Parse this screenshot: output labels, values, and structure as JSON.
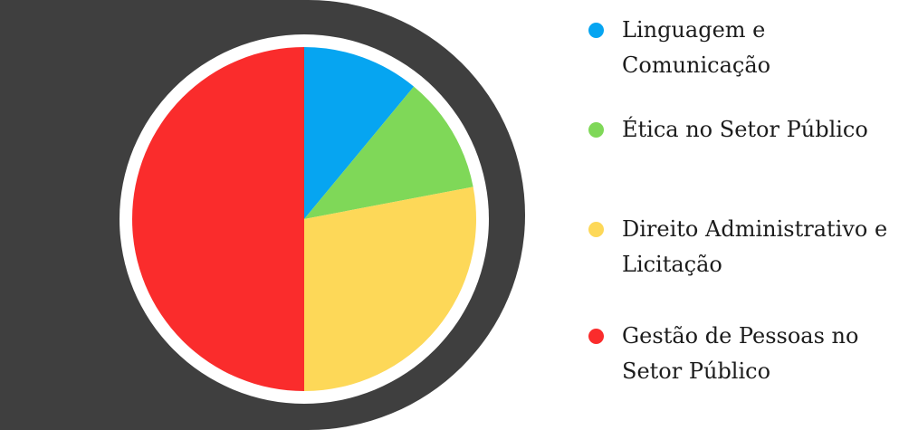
{
  "chart_data": {
    "type": "pie",
    "title": "",
    "categories": [
      "Linguagem e Comunicação",
      "Ética no Setor Público",
      "Direito Administrativo e Licitação",
      "Gestão de Pessoas no Setor Público"
    ],
    "values": [
      11,
      11,
      28,
      50
    ],
    "colors": [
      "#06a5f1",
      "#7fd858",
      "#fdd858",
      "#fa2c2c"
    ],
    "start_angle_deg": 0,
    "direction": "clockwise",
    "legend_position": "right"
  },
  "legend": {
    "items": [
      {
        "label": "Linguagem e Comunicação",
        "color": "#06a5f1"
      },
      {
        "label": "Ética no Setor Público",
        "color": "#7fd858"
      },
      {
        "label": "Direito Administrativo e Licitação",
        "color": "#fdd858"
      },
      {
        "label": "Gestão de Pessoas no Setor Público",
        "color": "#fa2c2c"
      }
    ]
  }
}
